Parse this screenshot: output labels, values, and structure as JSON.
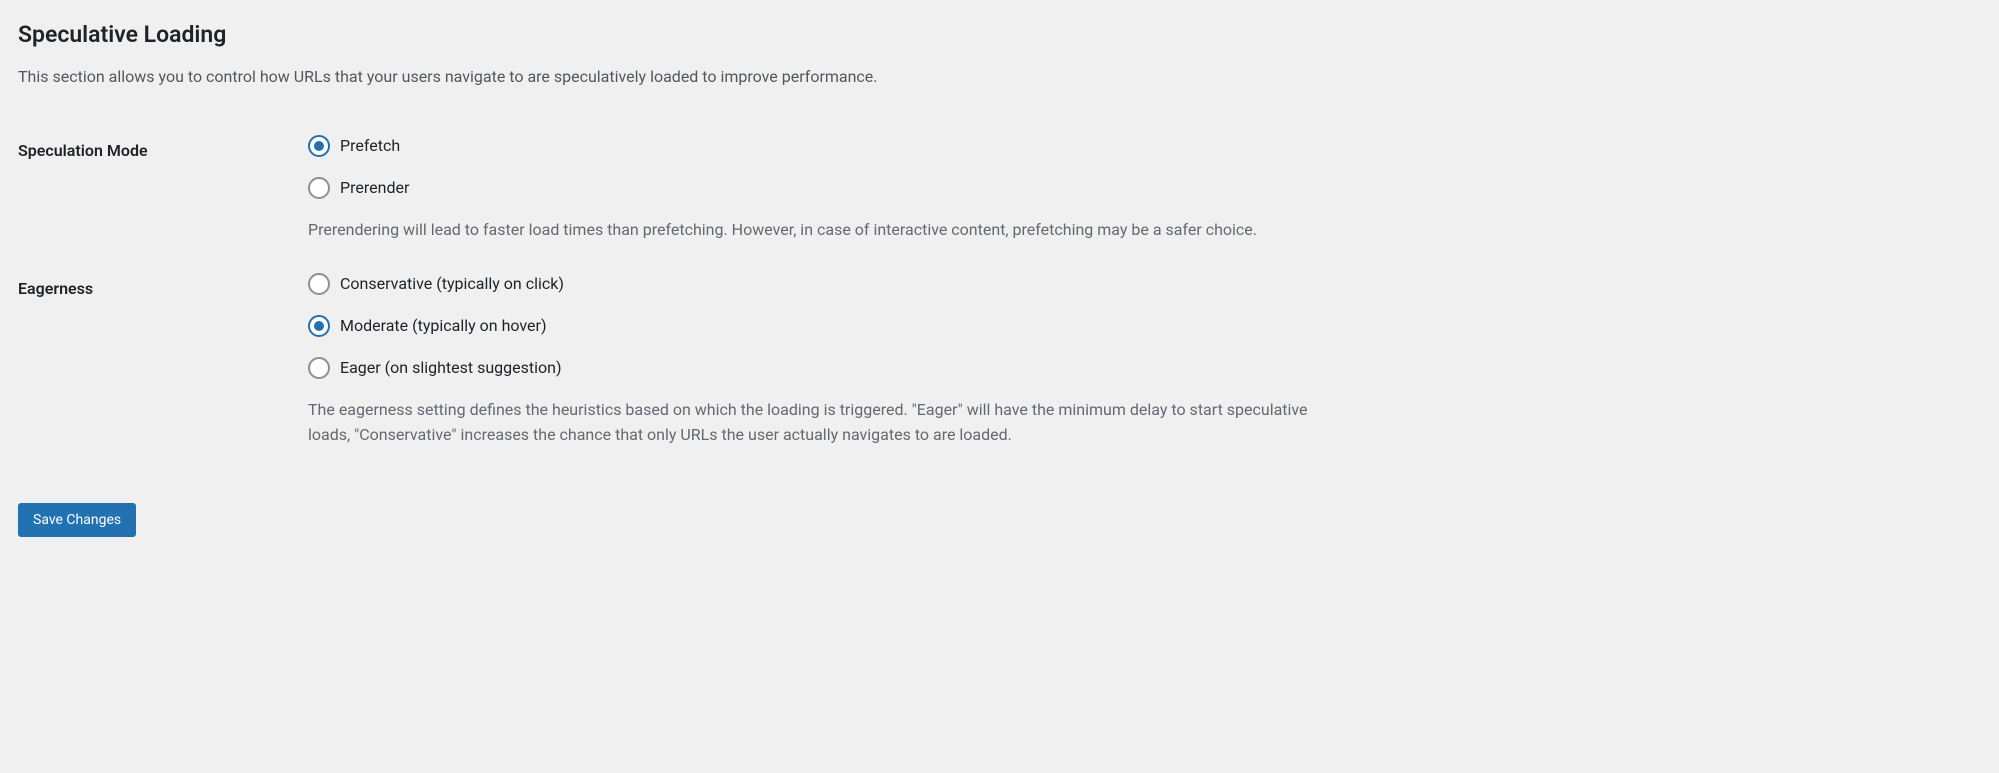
{
  "section": {
    "title": "Speculative Loading",
    "description": "This section allows you to control how URLs that your users navigate to are speculatively loaded to improve performance."
  },
  "fields": {
    "speculation_mode": {
      "label": "Speculation Mode",
      "options": [
        {
          "label": "Prefetch",
          "checked": true
        },
        {
          "label": "Prerender",
          "checked": false
        }
      ],
      "description": "Prerendering will lead to faster load times than prefetching. However, in case of interactive content, prefetching may be a safer choice."
    },
    "eagerness": {
      "label": "Eagerness",
      "options": [
        {
          "label": "Conservative (typically on click)",
          "checked": false
        },
        {
          "label": "Moderate (typically on hover)",
          "checked": true
        },
        {
          "label": "Eager (on slightest suggestion)",
          "checked": false
        }
      ],
      "description": "The eagerness setting defines the heuristics based on which the loading is triggered. \"Eager\" will have the minimum delay to start speculative loads, \"Conservative\" increases the chance that only URLs the user actually navigates to are loaded."
    }
  },
  "actions": {
    "save_label": "Save Changes"
  },
  "colors": {
    "background": "#f0f0f1",
    "text_primary": "#1d2327",
    "text_secondary": "#646970",
    "accent": "#2271b1",
    "radio_border": "#8c8f94"
  }
}
